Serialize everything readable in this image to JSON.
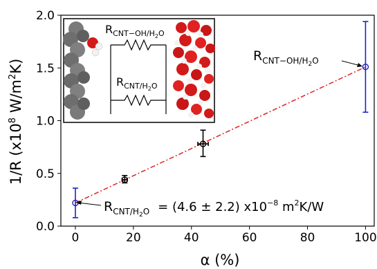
{
  "chart_data": {
    "type": "scatter",
    "xlabel": "α (%)",
    "ylabel_main": "1/R (x10",
    "ylabel_exp": "8",
    "ylabel_rest": " W/m",
    "ylabel_exp2": "2",
    "ylabel_end": "K)",
    "xlim": [
      -5,
      103
    ],
    "ylim": [
      0.0,
      2.0
    ],
    "x_ticks": [
      0,
      20,
      40,
      60,
      80,
      100
    ],
    "y_ticks": [
      0.0,
      0.5,
      1.0,
      1.5,
      2.0
    ],
    "x_tick_labels": [
      "0",
      "20",
      "40",
      "60",
      "80",
      "100"
    ],
    "y_tick_labels": [
      "0.0",
      "0.5",
      "1.0",
      "1.5",
      "2.0"
    ],
    "grid": false,
    "series": [
      {
        "points": [
          {
            "x": 0,
            "y": 0.22,
            "yerr_low": 0.08,
            "yerr_high": 0.36,
            "xerr": 0,
            "color": "#1f1fcc"
          },
          {
            "x": 17,
            "y": 0.44,
            "yerr_low": 0.41,
            "yerr_high": 0.48,
            "xerr": 0.9,
            "color": "#000000"
          },
          {
            "x": 44,
            "y": 0.78,
            "yerr_low": 0.66,
            "yerr_high": 0.91,
            "xerr": 1.8,
            "color": "#000000"
          },
          {
            "x": 100,
            "y": 1.51,
            "yerr_low": 1.08,
            "yerr_high": 1.94,
            "xerr": 0,
            "color": "#1f1fcc"
          }
        ]
      }
    ],
    "fit_line": {
      "x0": 0,
      "y0": 0.22,
      "x1": 100,
      "y1": 1.51,
      "color": "#e02020",
      "style": "dash-dot"
    },
    "annotations": {
      "r_cnt_h2o_main": "R",
      "r_cnt_h2o_sub": "CNT/H",
      "r_cnt_h2o_sub2": "2",
      "r_cnt_h2o_sub3": "O",
      "r_cnt_h2o_value": "= (4.6 ± 2.2) x10",
      "r_cnt_h2o_exp": "−8",
      "r_cnt_h2o_units": " m",
      "r_cnt_h2o_units_exp": "2",
      "r_cnt_h2o_units_end": "K/W",
      "r_cntoh_main": "R",
      "r_cntoh_sub": "CNT−OH/H",
      "r_cntoh_sub2": "2",
      "r_cntoh_sub3": "O"
    },
    "inset": {
      "label_top_main": "R",
      "label_top_sub": "CNT−OH/H",
      "label_top_sub2": "2",
      "label_top_sub3": "O",
      "label_bottom_main": "R",
      "label_bottom_sub": "CNT/H",
      "label_bottom_sub2": "2",
      "label_bottom_sub3": "O"
    },
    "colors": {
      "blue": "#1f1fcc",
      "black": "#000000",
      "red": "#e02020"
    }
  }
}
